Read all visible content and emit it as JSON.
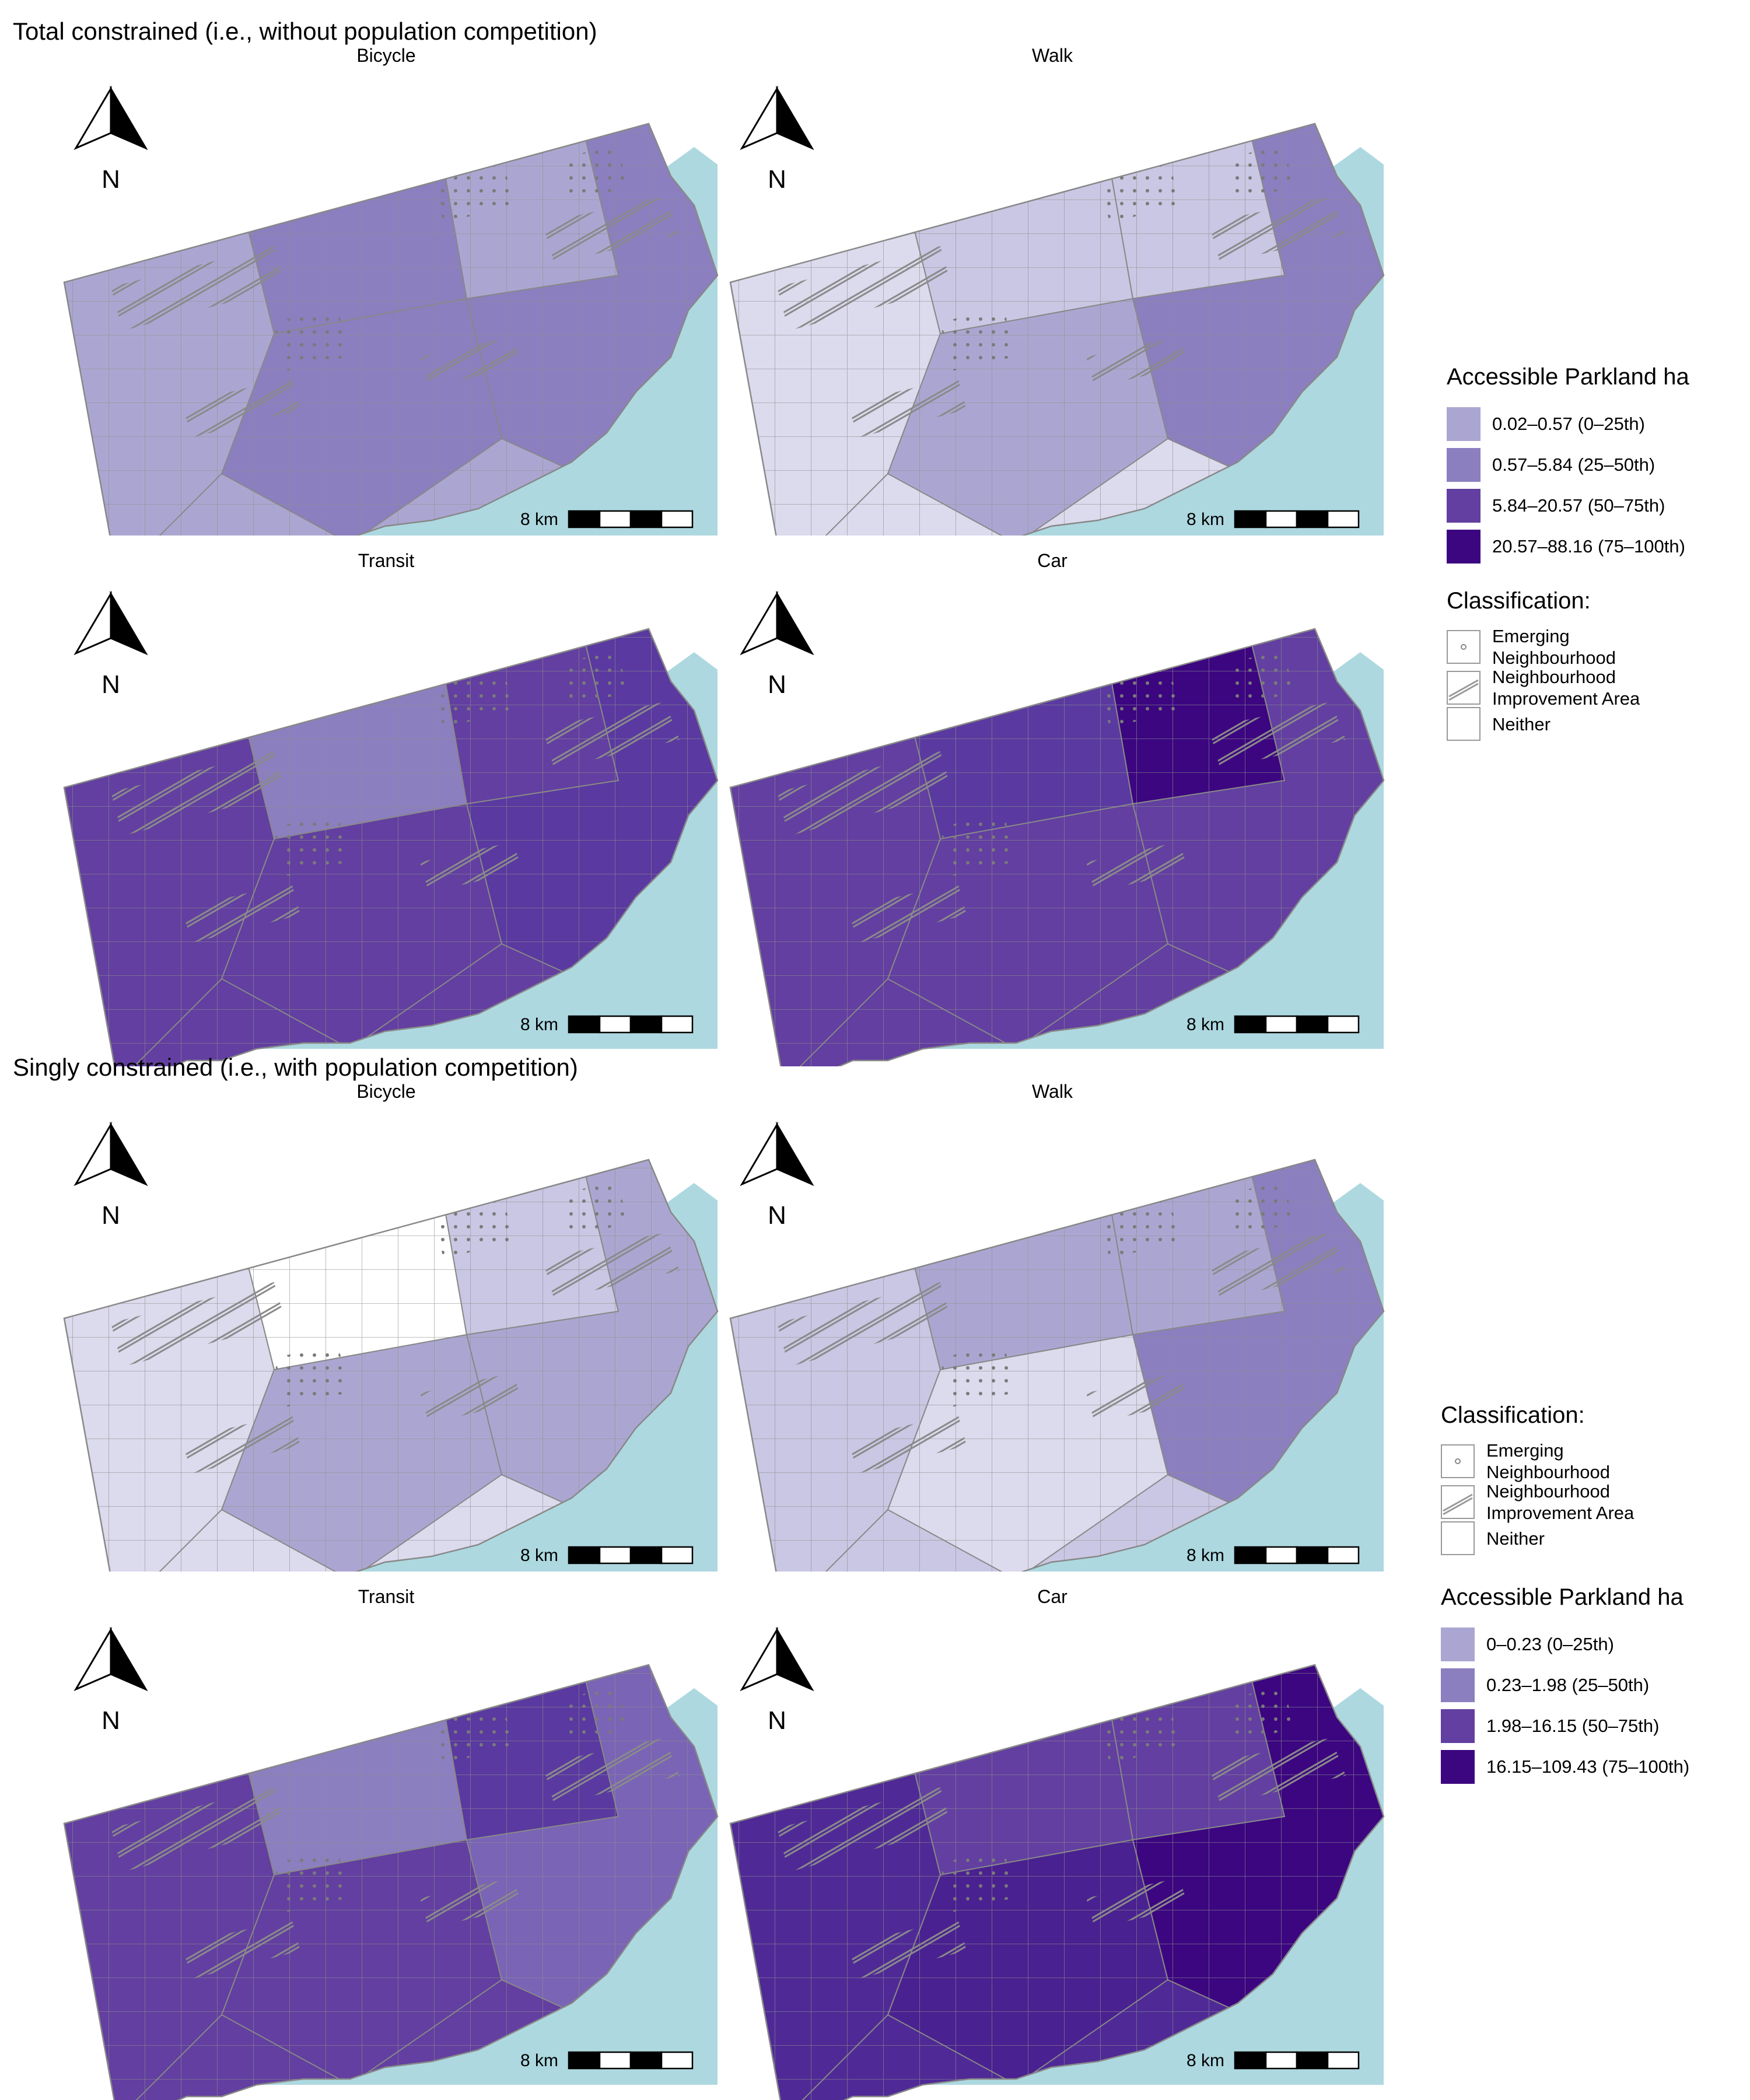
{
  "sections": [
    {
      "title": "Total constrained (i.e., without population competition)",
      "panels": [
        {
          "label": "Bicycle",
          "palette": "bike_total"
        },
        {
          "label": "Walk",
          "palette": "walk_total"
        },
        {
          "label": "Transit",
          "palette": "transit_total"
        },
        {
          "label": "Car",
          "palette": "car_total"
        }
      ]
    },
    {
      "title": "Singly constrained (i.e., with population competition)",
      "panels": [
        {
          "label": "Bicycle",
          "palette": "bike_single"
        },
        {
          "label": "Walk",
          "palette": "walk_single"
        },
        {
          "label": "Transit",
          "palette": "transit_single"
        },
        {
          "label": "Car",
          "palette": "car_single"
        }
      ]
    }
  ],
  "scale_bar": {
    "label": "8 km"
  },
  "north_arrow": {
    "label": "N",
    "icon": "north-arrow-icon"
  },
  "legend_total": {
    "title": "Accessible Parkland ha",
    "items": [
      {
        "label": "0.02–0.57 (0–25th)",
        "color": "#aba6d1"
      },
      {
        "label": "0.57–5.84 (25–50th)",
        "color": "#8b7fc0"
      },
      {
        "label": "5.84–20.57 (50–75th)",
        "color": "#623fa0"
      },
      {
        "label": "20.57–88.16 (75–100th)",
        "color": "#3c0680"
      }
    ]
  },
  "legend_single": {
    "title": "Accessible Parkland ha",
    "items": [
      {
        "label": "0–0.23 (0–25th)",
        "color": "#aba6d1"
      },
      {
        "label": "0.23–1.98 (25–50th)",
        "color": "#8b7fc0"
      },
      {
        "label": "1.98–16.15 (50–75th)",
        "color": "#623fa0"
      },
      {
        "label": "16.15–109.43 (75–100th)",
        "color": "#3c0680"
      }
    ]
  },
  "classification": {
    "title": "Classification:",
    "items": [
      {
        "label1": "Emerging",
        "label2": "Neighbourhood",
        "icon": "dot-pattern-icon"
      },
      {
        "label1": "Neighbourhood",
        "label2": "Improvement Area",
        "icon": "hatch-pattern-icon"
      },
      {
        "label1": "Neither",
        "label2": "",
        "icon": "empty-swatch-icon"
      }
    ]
  },
  "colors": {
    "water": "#add8e0",
    "boundary": "#888888",
    "bike_total": [
      "#aba6d1",
      "#8b7fc0",
      "#8b7fc0",
      "#aba6d1",
      "#8b7fc0"
    ],
    "walk_total": [
      "#dcdaed",
      "#cac7e4",
      "#aba6d1",
      "#cac7e4",
      "#8b7fc0"
    ],
    "transit_total": [
      "#623fa0",
      "#8b7fc0",
      "#623fa0",
      "#623fa0",
      "#5a39a0"
    ],
    "car_total": [
      "#623fa0",
      "#5a3aa0",
      "#623fa0",
      "#3c0680",
      "#623fa0"
    ],
    "bike_single": [
      "#dcdaed",
      "#ffffff",
      "#aba6d1",
      "#cac7e4",
      "#aba6d1"
    ],
    "walk_single": [
      "#cac7e4",
      "#aba6d1",
      "#dcdaed",
      "#aba6d1",
      "#8b7fc0"
    ],
    "transit_single": [
      "#623fa0",
      "#8b7fc0",
      "#623fa0",
      "#5a39a0",
      "#7a64b5"
    ],
    "car_single": [
      "#4f2a96",
      "#623fa0",
      "#4a2190",
      "#623fa0",
      "#3c0680"
    ]
  }
}
